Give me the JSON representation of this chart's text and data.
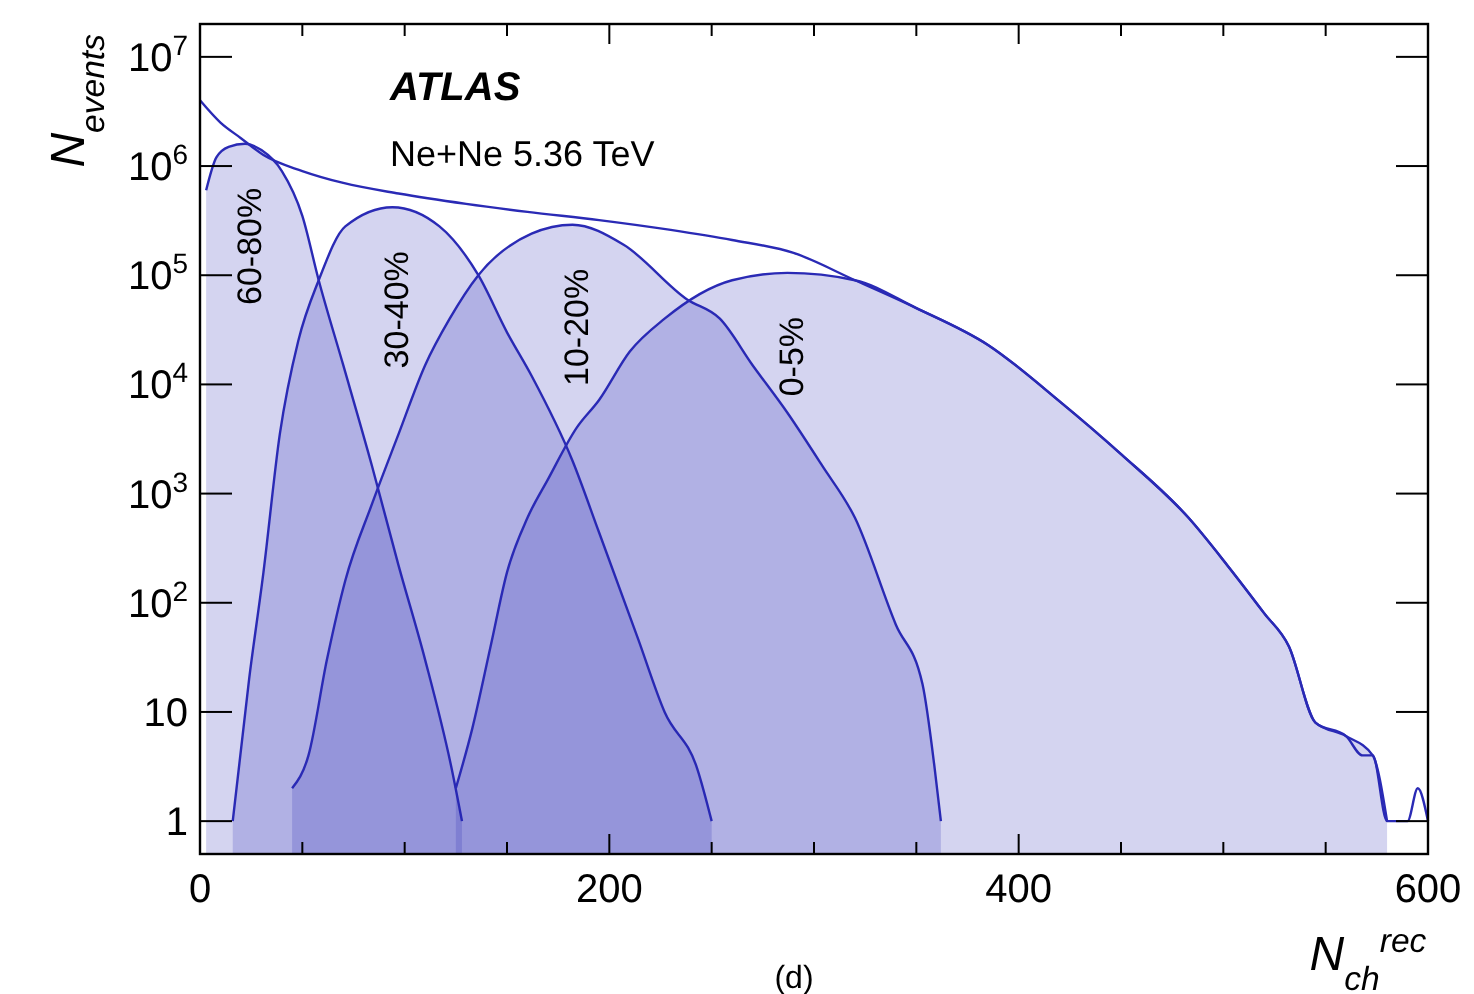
{
  "chart_data": {
    "type": "line",
    "xlabel": "N$_{ch}$$^{rec}$",
    "ylabel": "N$_{events}$",
    "annotations": [
      "ATLAS",
      "Ne+Ne 5.36 TeV",
      "(d)"
    ],
    "log": "y",
    "grid": false,
    "xlim": [
      0,
      600
    ],
    "xticks": [
      0,
      {
        "value": 50,
        "label": null
      },
      {
        "value": 100,
        "label": null
      },
      {
        "value": 150,
        "label": null
      },
      200,
      {
        "value": 250,
        "label": null
      },
      {
        "value": 300,
        "label": null
      },
      {
        "value": 350,
        "label": null
      },
      400,
      {
        "value": 450,
        "label": null
      },
      {
        "value": 500,
        "label": null
      },
      {
        "value": 550,
        "label": null
      },
      600
    ],
    "ylim": [
      0.5,
      20000000
    ],
    "yticks": [
      1,
      10,
      {
        "value": 100,
        "label": "10$^{2}$"
      },
      {
        "value": 1000,
        "label": "10$^{3}$"
      },
      {
        "value": 10000,
        "label": "10$^{4}$"
      },
      {
        "value": 100000,
        "label": "10$^{5}$"
      },
      {
        "value": 1000000,
        "label": "10$^{6}$"
      },
      {
        "value": 10000000,
        "label": "10$^{7}$"
      }
    ],
    "series": [
      {
        "color": "#2a2ab5",
        "x": [
          0,
          10,
          20,
          31,
          50,
          70,
          97,
          130,
          160,
          195,
          230,
          260,
          290,
          320,
          350,
          385,
          420,
          450,
          483,
          502,
          520,
          532,
          545,
          560,
          568,
          573,
          580,
          590,
          595,
          600
        ],
        "values": [
          4000000,
          2500000,
          1800000,
          1260000,
          900000,
          700000,
          560000,
          450000,
          380000,
          320000,
          260000,
          210000,
          160000,
          90000,
          50000,
          23000,
          7000,
          2300,
          600,
          220,
          80,
          40,
          8,
          6,
          4,
          4,
          1,
          1,
          2,
          1
        ]
      },
      {
        "type": "area",
        "name": "60-80%",
        "color": "#2a2ab5",
        "x": [
          3,
          8,
          14,
          22,
          30,
          40,
          50,
          58,
          70,
          84,
          97,
          110,
          123,
          128
        ],
        "values": [
          600000,
          1200000,
          1500000,
          1600000,
          1400000,
          900000,
          350000,
          90000,
          15000,
          1800,
          220,
          30,
          3,
          1
        ]
      },
      {
        "type": "area",
        "name": "30-40%",
        "color": "#2a2ab5",
        "x": [
          16,
          24,
          31,
          39,
          48,
          58,
          71,
          94,
          117,
          136,
          150,
          162,
          182,
          195,
          214,
          227,
          243,
          250
        ],
        "values": [
          1,
          20,
          190,
          3500,
          25000,
          90000,
          280000,
          420000,
          280000,
          100000,
          30000,
          12000,
          2000,
          440,
          47,
          10,
          3,
          1
        ]
      },
      {
        "type": "area",
        "name": "10-20%",
        "color": "#2a2ab5",
        "x": [
          45,
          53,
          62,
          71,
          84,
          97,
          110,
          122,
          136,
          162,
          182,
          207,
          238,
          254,
          270,
          287,
          304,
          320,
          340,
          353,
          359,
          362
        ],
        "values": [
          2,
          4,
          30,
          160,
          800,
          3500,
          15000,
          40000,
          100000,
          240000,
          290000,
          190000,
          60000,
          40000,
          15000,
          5500,
          1800,
          600,
          63,
          18,
          3,
          1
        ]
      },
      {
        "type": "area",
        "name": "0-5%",
        "color": "#2a2ab5",
        "x": [
          125,
          133,
          142,
          150,
          160,
          170,
          184,
          195,
          210,
          227,
          260,
          287,
          320,
          350,
          385,
          420,
          450,
          483,
          502,
          520,
          532,
          545,
          560,
          573,
          580
        ],
        "values": [
          2,
          7,
          40,
          190,
          600,
          1350,
          4000,
          7200,
          20000,
          40000,
          90000,
          105000,
          90000,
          50000,
          23000,
          7000,
          2300,
          600,
          220,
          80,
          40,
          8,
          6,
          4,
          1
        ]
      }
    ]
  }
}
